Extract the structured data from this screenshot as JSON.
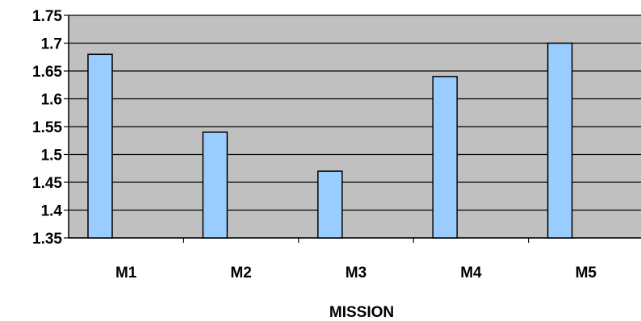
{
  "chart_data": {
    "type": "bar",
    "title": "",
    "xlabel": "MISSION",
    "ylabel": "",
    "categories": [
      "M1",
      "M2",
      "M3",
      "M4",
      "M5"
    ],
    "values": [
      1.68,
      1.54,
      1.47,
      1.64,
      1.7
    ],
    "ylim": [
      1.35,
      1.75
    ],
    "yticks": [
      "1.35",
      "1.4",
      "1.45",
      "1.5",
      "1.55",
      "1.6",
      "1.65",
      "1.7",
      "1.75"
    ],
    "grid": true,
    "legend": "none",
    "colors": {
      "bar_fill": "#99ccff",
      "bar_stroke": "#000000",
      "plot_background": "#c0c0c0",
      "gridline": "#000000"
    }
  }
}
